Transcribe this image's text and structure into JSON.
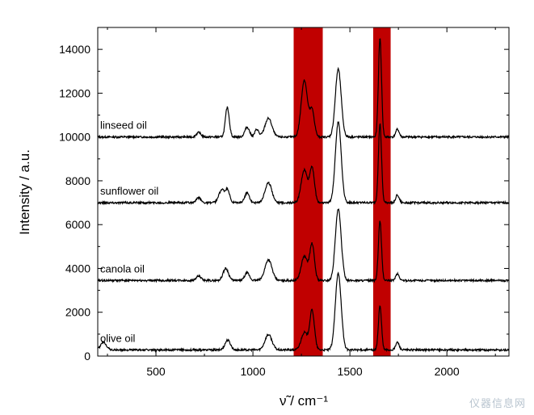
{
  "chart_data": {
    "type": "line",
    "xlabel": "ν̃ / cm⁻¹",
    "ylabel": "Intensity / a.u.",
    "xlim": [
      200,
      2320
    ],
    "ylim": [
      0,
      15000
    ],
    "xticks": [
      500,
      1000,
      1500,
      2000
    ],
    "yticks": [
      0,
      2000,
      4000,
      6000,
      8000,
      10000,
      12000,
      14000
    ],
    "grid": false,
    "highlight_bands": [
      {
        "from": 1210,
        "to": 1360,
        "color": "#c00000"
      },
      {
        "from": 1620,
        "to": 1710,
        "color": "#c00000"
      }
    ],
    "series": [
      {
        "name": "linseed oil",
        "baseline": 10000,
        "peaks": [
          [
            720,
            200,
            12
          ],
          [
            868,
            1350,
            10
          ],
          [
            970,
            450,
            12
          ],
          [
            1020,
            350,
            10
          ],
          [
            1080,
            850,
            18
          ],
          [
            1265,
            2600,
            16
          ],
          [
            1305,
            1200,
            12
          ],
          [
            1440,
            3100,
            15
          ],
          [
            1655,
            4500,
            8
          ],
          [
            1745,
            350,
            9
          ]
        ]
      },
      {
        "name": "sunflower oil",
        "baseline": 7000,
        "peaks": [
          [
            720,
            220,
            12
          ],
          [
            840,
            600,
            15
          ],
          [
            870,
            550,
            10
          ],
          [
            970,
            450,
            12
          ],
          [
            1080,
            900,
            18
          ],
          [
            1265,
            1500,
            16
          ],
          [
            1305,
            1600,
            12
          ],
          [
            1440,
            3700,
            15
          ],
          [
            1655,
            3600,
            8
          ],
          [
            1745,
            350,
            9
          ]
        ]
      },
      {
        "name": "canola oil",
        "baseline": 3450,
        "peaks": [
          [
            720,
            200,
            12
          ],
          [
            860,
            550,
            14
          ],
          [
            970,
            350,
            12
          ],
          [
            1080,
            950,
            18
          ],
          [
            1265,
            1100,
            16
          ],
          [
            1305,
            1650,
            12
          ],
          [
            1440,
            3250,
            15
          ],
          [
            1655,
            2700,
            8
          ],
          [
            1745,
            300,
            9
          ]
        ]
      },
      {
        "name": "olive oil",
        "baseline": 280,
        "peaks": [
          [
            230,
            350,
            15
          ],
          [
            870,
            450,
            14
          ],
          [
            1080,
            700,
            18
          ],
          [
            1265,
            800,
            16
          ],
          [
            1305,
            1800,
            12
          ],
          [
            1440,
            3500,
            15
          ],
          [
            1655,
            2000,
            8
          ],
          [
            1745,
            350,
            9
          ]
        ]
      }
    ]
  },
  "watermark": "仪器信息网"
}
